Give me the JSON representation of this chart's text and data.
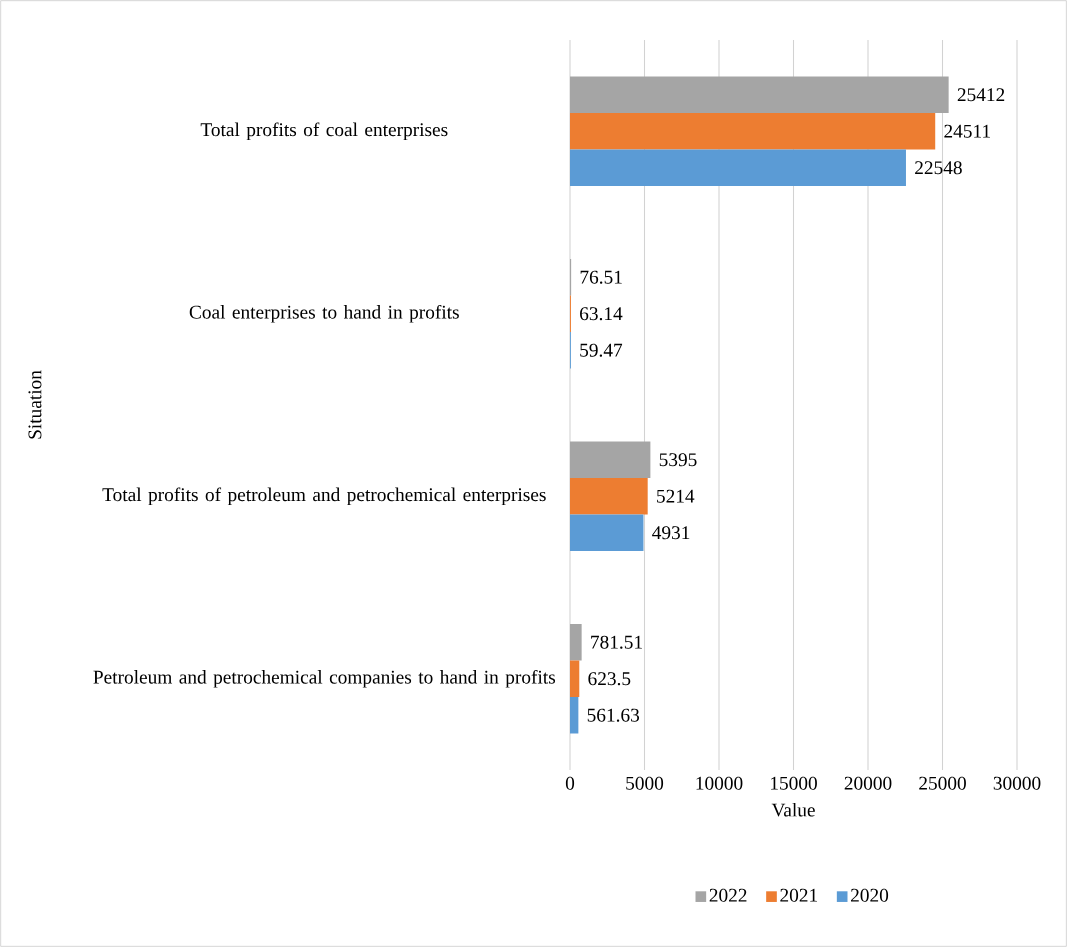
{
  "chart_data": {
    "type": "bar",
    "orientation": "horizontal",
    "xlabel": "Value",
    "ylabel": "Situation",
    "categories": [
      "Total profits of coal enterprises",
      "Coal enterprises to hand in profits",
      "Total profits of petroleum and petrochemical enterprises",
      "Petroleum and petrochemical companies to hand in profits"
    ],
    "series": [
      {
        "name": "2022",
        "color": "#a5a5a5",
        "values": [
          25412,
          76.51,
          5395,
          781.51
        ]
      },
      {
        "name": "2021",
        "color": "#ed7d31",
        "values": [
          24511,
          63.14,
          5214,
          623.5
        ]
      },
      {
        "name": "2020",
        "color": "#5b9bd5",
        "values": [
          22548,
          59.47,
          4931,
          561.63
        ]
      }
    ],
    "xlim": [
      0,
      30000
    ],
    "xticks": [
      0,
      5000,
      10000,
      15000,
      20000,
      25000,
      30000
    ],
    "grid": "x",
    "legend": "bottom",
    "data_labels": true
  }
}
